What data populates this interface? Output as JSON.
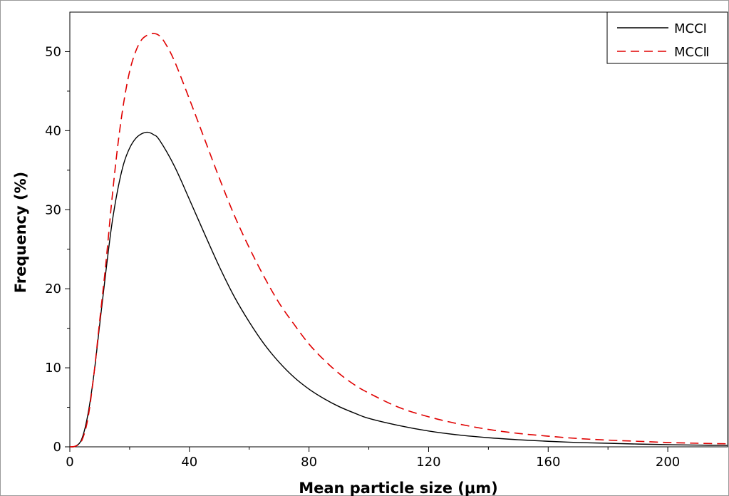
{
  "chart_data": {
    "type": "line",
    "xlabel": "Mean particle size (μm)",
    "ylabel": "Frequency (%)",
    "xlim": [
      0,
      220
    ],
    "ylim": [
      0,
      55
    ],
    "xticks": [
      0,
      40,
      80,
      120,
      160,
      200
    ],
    "yticks": [
      0,
      10,
      20,
      30,
      40,
      50
    ],
    "grid": false,
    "legend_position": "top-right",
    "series": [
      {
        "name": "MCCI",
        "color": "#000000",
        "style": "solid",
        "x": [
          0,
          2,
          4,
          6,
          8,
          10,
          12,
          14,
          16,
          18,
          20,
          22,
          24,
          26,
          28,
          30,
          35,
          40,
          45,
          50,
          55,
          60,
          65,
          70,
          75,
          80,
          85,
          90,
          95,
          100,
          110,
          120,
          130,
          140,
          150,
          160,
          170,
          180,
          190,
          200,
          210,
          220
        ],
        "y": [
          0,
          0.1,
          1.0,
          4.0,
          9.0,
          15.5,
          22.0,
          28.0,
          32.5,
          35.8,
          37.8,
          39.0,
          39.6,
          39.8,
          39.5,
          38.8,
          35.5,
          31.3,
          27.0,
          22.8,
          19.0,
          15.8,
          13.0,
          10.7,
          8.8,
          7.3,
          6.1,
          5.1,
          4.3,
          3.6,
          2.7,
          2.0,
          1.5,
          1.15,
          0.9,
          0.7,
          0.55,
          0.45,
          0.35,
          0.28,
          0.22,
          0.18
        ]
      },
      {
        "name": "MCCⅡ",
        "color": "#e00000",
        "style": "dashed",
        "x": [
          0,
          2,
          4,
          6,
          8,
          10,
          12,
          14,
          16,
          18,
          20,
          22,
          24,
          26,
          28,
          30,
          32,
          35,
          40,
          45,
          50,
          55,
          60,
          65,
          70,
          75,
          80,
          85,
          90,
          95,
          100,
          110,
          120,
          130,
          140,
          150,
          160,
          170,
          180,
          190,
          200,
          210,
          220
        ],
        "y": [
          0,
          0.1,
          0.8,
          3.5,
          9.0,
          16.0,
          23.0,
          31.0,
          38.0,
          43.5,
          47.5,
          50.0,
          51.5,
          52.1,
          52.3,
          52.0,
          51.0,
          48.8,
          44.0,
          39.0,
          34.0,
          29.3,
          25.2,
          21.5,
          18.2,
          15.5,
          13.0,
          11.0,
          9.3,
          7.9,
          6.8,
          5.0,
          3.8,
          2.9,
          2.2,
          1.7,
          1.35,
          1.05,
          0.85,
          0.7,
          0.55,
          0.45,
          0.38
        ]
      }
    ]
  }
}
